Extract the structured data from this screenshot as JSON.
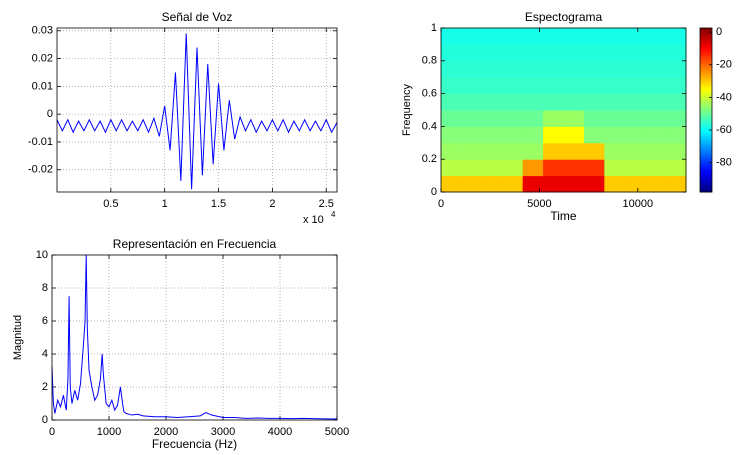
{
  "chart_data": [
    {
      "type": "line",
      "title": "Señal de Voz",
      "color": "#0000ff",
      "grid": true,
      "x_scale_label": "x 10",
      "x_scale_exponent": "4",
      "x": [
        0,
        0.05,
        0.1,
        0.15,
        0.2,
        0.25,
        0.3,
        0.35,
        0.4,
        0.45,
        0.5,
        0.55,
        0.6,
        0.65,
        0.7,
        0.75,
        0.8,
        0.85,
        0.9,
        0.95,
        1.0,
        1.05,
        1.1,
        1.15,
        1.2,
        1.25,
        1.3,
        1.35,
        1.4,
        1.45,
        1.5,
        1.55,
        1.6,
        1.65,
        1.7,
        1.75,
        1.8,
        1.85,
        1.9,
        1.95,
        2.0,
        2.05,
        2.1,
        2.15,
        2.2,
        2.25,
        2.3,
        2.35,
        2.4,
        2.45,
        2.5,
        2.55,
        2.6
      ],
      "values": [
        -0.002,
        -0.006,
        -0.002,
        -0.0065,
        -0.0025,
        -0.006,
        -0.002,
        -0.006,
        -0.0025,
        -0.0065,
        -0.002,
        -0.006,
        -0.002,
        -0.006,
        -0.0025,
        -0.006,
        -0.002,
        -0.0065,
        -0.0015,
        -0.008,
        0.003,
        -0.013,
        0.015,
        -0.024,
        0.029,
        -0.027,
        0.024,
        -0.022,
        0.018,
        -0.018,
        0.011,
        -0.013,
        0.005,
        -0.009,
        -0.001,
        -0.006,
        -0.002,
        -0.0065,
        -0.0025,
        -0.006,
        -0.002,
        -0.006,
        -0.002,
        -0.0065,
        -0.0025,
        -0.006,
        -0.002,
        -0.006,
        -0.0025,
        -0.006,
        -0.002,
        -0.0065,
        -0.003
      ],
      "xlim": [
        0,
        2.6
      ],
      "xticks": [
        0.5,
        1,
        1.5,
        2,
        2.5
      ],
      "ylim": [
        -0.028,
        0.031
      ],
      "yticks": [
        0.03,
        0.02,
        0.01,
        0,
        -0.01,
        -0.02
      ]
    },
    {
      "type": "heatmap",
      "title": "Espectograma",
      "x_label": "Time",
      "y_label": "Frequency",
      "grid": false,
      "xlim": [
        0,
        12450
      ],
      "xticks": [
        0,
        5000,
        10000
      ],
      "ylim": [
        0,
        1
      ],
      "yticks": [
        0,
        0.2,
        0.4,
        0.6,
        0.8,
        1
      ],
      "z": [
        [
          -30,
          -30,
          -30,
          -30,
          -8,
          -8,
          -8,
          -8,
          -30,
          -30,
          -30,
          -30
        ],
        [
          -42,
          -42,
          -42,
          -42,
          -25,
          -15,
          -15,
          -15,
          -42,
          -42,
          -42,
          -42
        ],
        [
          -45,
          -45,
          -45,
          -45,
          -45,
          -30,
          -30,
          -30,
          -45,
          -45,
          -45,
          -45
        ],
        [
          -47,
          -47,
          -47,
          -47,
          -47,
          -35,
          -35,
          -47,
          -47,
          -47,
          -47,
          -47
        ],
        [
          -50,
          -50,
          -50,
          -50,
          -50,
          -45,
          -45,
          -50,
          -50,
          -50,
          -50,
          -50
        ],
        [
          -53,
          -53,
          -53,
          -53,
          -53,
          -53,
          -53,
          -53,
          -53,
          -53,
          -53,
          -53
        ],
        [
          -55,
          -55,
          -55,
          -55,
          -55,
          -55,
          -55,
          -55,
          -55,
          -55,
          -55,
          -55
        ],
        [
          -56,
          -56,
          -56,
          -56,
          -56,
          -56,
          -56,
          -56,
          -56,
          -56,
          -56,
          -56
        ],
        [
          -57,
          -57,
          -57,
          -57,
          -57,
          -57,
          -57,
          -57,
          -57,
          -57,
          -57,
          -57
        ],
        [
          -58,
          -58,
          -58,
          -58,
          -58,
          -58,
          -58,
          -58,
          -58,
          -58,
          -58,
          -58
        ]
      ],
      "colorbar": {
        "lim": [
          -98,
          2.5
        ],
        "ticks": [
          0,
          -20,
          -40,
          -60,
          -80
        ]
      }
    },
    {
      "type": "line",
      "title": "Representación en Frecuencia",
      "x_label": "Frecuencia (Hz)",
      "y_label": "Magnitud",
      "color": "#0000ff",
      "grid": true,
      "x": [
        0,
        25,
        50,
        100,
        150,
        200,
        250,
        280,
        300,
        320,
        350,
        400,
        450,
        500,
        550,
        580,
        600,
        620,
        650,
        700,
        750,
        800,
        850,
        880,
        900,
        950,
        1000,
        1050,
        1100,
        1150,
        1200,
        1230,
        1260,
        1300,
        1400,
        1500,
        1600,
        1800,
        2000,
        2200,
        2400,
        2600,
        2700,
        2800,
        3000,
        3200,
        3400,
        3600,
        3800,
        4000,
        4200,
        4400,
        4600,
        4800,
        5000
      ],
      "values": [
        3.2,
        1.0,
        0.4,
        1.2,
        0.8,
        1.5,
        0.6,
        2.5,
        7.5,
        2.0,
        1.0,
        1.8,
        1.2,
        2.2,
        4.5,
        6.0,
        10,
        5.5,
        3.0,
        2.0,
        1.2,
        1.5,
        2.5,
        4.0,
        2.8,
        1.0,
        0.8,
        1.2,
        0.6,
        0.9,
        2.0,
        1.2,
        0.5,
        0.4,
        0.3,
        0.35,
        0.25,
        0.2,
        0.2,
        0.15,
        0.2,
        0.25,
        0.45,
        0.3,
        0.15,
        0.15,
        0.1,
        0.12,
        0.1,
        0.1,
        0.08,
        0.1,
        0.08,
        0.07,
        0.06
      ],
      "xlim": [
        0,
        5000
      ],
      "xticks": [
        0,
        1000,
        2000,
        3000,
        4000,
        5000
      ],
      "ylim": [
        0,
        10
      ],
      "yticks": [
        0,
        2,
        4,
        6,
        8,
        10
      ]
    }
  ]
}
